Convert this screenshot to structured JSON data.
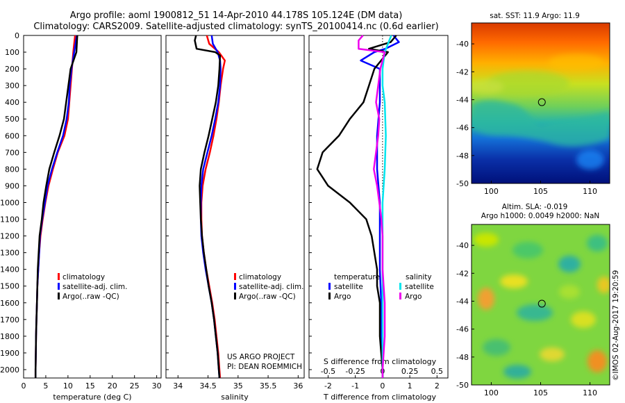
{
  "title_line1": "Argo profile: aoml 1900812_51 14-Apr-2010 44.178S 105.124E (DM data)",
  "title_line2": "Climatology: CARS2009. Satellite-adjusted climatology: synTS_20100414.nc (0.6d earlier)",
  "project_line1": "US ARGO PROJECT",
  "project_line2": "PI: DEAN ROEMMICH",
  "imos_stamp": "©IMOS 02-Aug-2017 19:20:59",
  "colors": {
    "climatology": "#ff0000",
    "satellite": "#0000ff",
    "argo": "#000000",
    "sat_salinity": "#00e5ee",
    "argo_salinity": "#ee00ee"
  },
  "chart_data": [
    {
      "type": "line",
      "name": "temperature",
      "xlabel": "temperature (deg C)",
      "xlim": [
        0,
        31
      ],
      "xticks": [
        0,
        5,
        10,
        15,
        20,
        25,
        30
      ],
      "ylim": [
        2050,
        0
      ],
      "yticks": [
        0,
        100,
        200,
        300,
        400,
        500,
        600,
        700,
        800,
        900,
        1000,
        1100,
        1200,
        1300,
        1400,
        1500,
        1600,
        1700,
        1800,
        1900,
        2000
      ],
      "legend": [
        "climatology",
        "satellite-adj. clim.",
        "Argo(..raw -QC)"
      ],
      "legend_position": "lower-right",
      "series": [
        {
          "name": "climatology",
          "depth": [
            0,
            100,
            200,
            300,
            400,
            500,
            600,
            700,
            800,
            900,
            1000,
            1100,
            1200,
            1300,
            1400,
            1500,
            1600,
            1700,
            1800,
            1900,
            2000,
            2050
          ],
          "values": [
            11.6,
            11.2,
            10.9,
            10.6,
            10.3,
            10.0,
            9.2,
            7.7,
            6.6,
            5.6,
            4.9,
            4.3,
            3.8,
            3.5,
            3.3,
            3.1,
            3.0,
            2.9,
            2.8,
            2.75,
            2.7,
            2.7
          ]
        },
        {
          "name": "satellite-adj. clim.",
          "depth": [
            0,
            100,
            200,
            300,
            400,
            500,
            600,
            700,
            800,
            900,
            1000,
            1100,
            1200,
            1300,
            1400,
            1500,
            1600,
            1700,
            1800,
            1900,
            2000,
            2050
          ],
          "values": [
            12.0,
            11.4,
            10.8,
            10.4,
            10.2,
            9.7,
            8.9,
            7.6,
            6.4,
            5.4,
            4.8,
            4.2,
            3.7,
            3.5,
            3.3,
            3.1,
            3.0,
            2.9,
            2.8,
            2.75,
            2.7,
            2.7
          ]
        },
        {
          "name": "Argo(..raw -QC)",
          "depth": [
            0,
            100,
            200,
            300,
            400,
            500,
            600,
            700,
            800,
            900,
            1000,
            1100,
            1200,
            1300,
            1400,
            1500,
            1600,
            1700,
            1800,
            1900,
            2000,
            2050
          ],
          "values": [
            12.1,
            11.9,
            10.6,
            10.1,
            9.6,
            9.1,
            8.1,
            6.9,
            5.8,
            5.1,
            4.5,
            4.1,
            3.6,
            3.4,
            3.2,
            3.1,
            3.0,
            2.9,
            2.8,
            2.75,
            2.7,
            2.7
          ]
        }
      ]
    },
    {
      "type": "line",
      "name": "salinity",
      "xlabel": "salinity",
      "xlim": [
        33.8,
        36.1
      ],
      "xticks": [
        34,
        34.5,
        35,
        35.5,
        36
      ],
      "ylim": [
        2050,
        0
      ],
      "legend": [
        "climatology",
        "satellite-adj. clim.",
        "Argo(..raw -QC)"
      ],
      "legend_position": "lower-right",
      "series": [
        {
          "name": "climatology",
          "depth": [
            0,
            50,
            100,
            150,
            200,
            300,
            400,
            500,
            600,
            700,
            800,
            900,
            1000,
            1100,
            1200,
            1300,
            1400,
            1500,
            1600,
            1700,
            1800,
            1900,
            2000,
            2050
          ],
          "values": [
            34.48,
            34.52,
            34.68,
            34.78,
            34.75,
            34.71,
            34.68,
            34.64,
            34.59,
            34.53,
            34.46,
            34.41,
            34.39,
            34.39,
            34.4,
            34.43,
            34.47,
            34.52,
            34.57,
            34.61,
            34.64,
            34.67,
            34.69,
            34.7
          ]
        },
        {
          "name": "satellite-adj. clim.",
          "depth": [
            0,
            50,
            100,
            150,
            200,
            300,
            400,
            500,
            600,
            700,
            800,
            900,
            1000,
            1100,
            1200,
            1300,
            1400,
            1500,
            1600,
            1700,
            1800,
            1900,
            2000,
            2050
          ],
          "values": [
            34.56,
            34.58,
            34.66,
            34.7,
            34.71,
            34.7,
            34.67,
            34.62,
            34.56,
            34.49,
            34.42,
            34.39,
            34.38,
            34.38,
            34.39,
            34.42,
            34.46,
            34.51,
            34.56,
            34.6,
            34.63,
            34.66,
            34.68,
            34.69
          ]
        },
        {
          "name": "Argo(..raw -QC)",
          "depth": [
            0,
            30,
            80,
            100,
            120,
            200,
            300,
            400,
            500,
            600,
            700,
            800,
            900,
            1000,
            1100,
            1200,
            1300,
            1400,
            1500,
            1600,
            1700,
            1800,
            1900,
            2000,
            2050
          ],
          "values": [
            34.3,
            34.28,
            34.31,
            34.62,
            34.7,
            34.69,
            34.67,
            34.63,
            34.57,
            34.51,
            34.44,
            34.38,
            34.36,
            34.37,
            34.38,
            34.4,
            34.43,
            34.47,
            34.51,
            34.56,
            34.6,
            34.63,
            34.66,
            34.68,
            34.69
          ]
        }
      ]
    },
    {
      "type": "line",
      "name": "difference",
      "xlabel_top": "S difference from climatology",
      "xlabel": "T difference from climatology",
      "xlim": [
        -2.7,
        2.4
      ],
      "xticks": [
        -2,
        -1,
        0,
        1,
        2
      ],
      "xticks_top": [
        "-0.5",
        "-0.25",
        "0",
        "0.25",
        "0.5"
      ],
      "ylim": [
        2050,
        0
      ],
      "legend_temperature_title": "temperature",
      "legend_salinity_title": "salinity",
      "legend_left": [
        "satellite",
        "Argo"
      ],
      "legend_right": [
        "satellite",
        "Argo"
      ],
      "series": [
        {
          "name": "temperature satellite",
          "depth": [
            0,
            40,
            80,
            100,
            150,
            200,
            300,
            400,
            600,
            800,
            1000,
            1200,
            1400,
            1600,
            1800,
            2000,
            2050
          ],
          "values": [
            0.4,
            0.6,
            0.1,
            -0.3,
            -0.8,
            -0.1,
            -0.1,
            -0.1,
            -0.2,
            -0.2,
            -0.1,
            -0.1,
            -0.1,
            -0.05,
            -0.05,
            0,
            0
          ]
        },
        {
          "name": "temperature Argo",
          "depth": [
            0,
            40,
            80,
            100,
            200,
            300,
            400,
            500,
            600,
            700,
            800,
            900,
            1000,
            1100,
            1200,
            1300,
            1400,
            1500,
            1600,
            1700,
            1800,
            1900,
            2000,
            2050
          ],
          "values": [
            0.5,
            0.3,
            -0.5,
            0.2,
            -0.3,
            -0.5,
            -0.7,
            -1.2,
            -1.6,
            -2.2,
            -2.4,
            -2.0,
            -1.2,
            -0.6,
            -0.4,
            -0.3,
            -0.2,
            -0.2,
            -0.1,
            -0.1,
            -0.1,
            -0.05,
            0,
            0
          ]
        },
        {
          "name": "salinity satellite",
          "depth": [
            0,
            100,
            200,
            300,
            400,
            600,
            800,
            1000,
            1200,
            1400,
            1600,
            1800,
            2000,
            2050
          ],
          "values": [
            0.08,
            0.02,
            0.0,
            0.0,
            0.02,
            0.03,
            0.02,
            0.0,
            0.0,
            0.0,
            0.0,
            0.0,
            0.0,
            0.0
          ]
        },
        {
          "name": "salinity Argo",
          "depth": [
            0,
            30,
            80,
            100,
            200,
            300,
            400,
            500,
            600,
            700,
            800,
            900,
            1000,
            1100,
            1200,
            1400,
            1600,
            1800,
            2000,
            2050
          ],
          "values": [
            -0.18,
            -0.22,
            -0.22,
            0.02,
            -0.02,
            -0.04,
            -0.06,
            -0.03,
            -0.04,
            -0.06,
            -0.08,
            -0.05,
            -0.03,
            -0.01,
            0.0,
            0.0,
            0.02,
            0.02,
            0.0,
            0.0
          ]
        }
      ]
    },
    {
      "type": "heatmap",
      "name": "sat_sst_map",
      "title": "sat. SST: 11.9 Argo: 11.9",
      "xlim": [
        98,
        112
      ],
      "ylim": [
        -50,
        -38.5
      ],
      "xticks": [
        100,
        105,
        110
      ],
      "yticks": [
        -40,
        -42,
        -44,
        -46,
        -48,
        -50
      ],
      "marker": {
        "lon": 105.124,
        "lat": -44.178
      }
    },
    {
      "type": "heatmap",
      "name": "altimetry_map",
      "title_line1": "Altim. SLA: -0.019",
      "title_line2": "Argo h1000: 0.0049 h2000: NaN",
      "xlim": [
        98,
        112
      ],
      "ylim": [
        -50,
        -38.5
      ],
      "xticks": [
        100,
        105,
        110
      ],
      "yticks": [
        -40,
        -42,
        -44,
        -46,
        -48,
        -50
      ],
      "marker": {
        "lon": 105.124,
        "lat": -44.178
      }
    }
  ]
}
